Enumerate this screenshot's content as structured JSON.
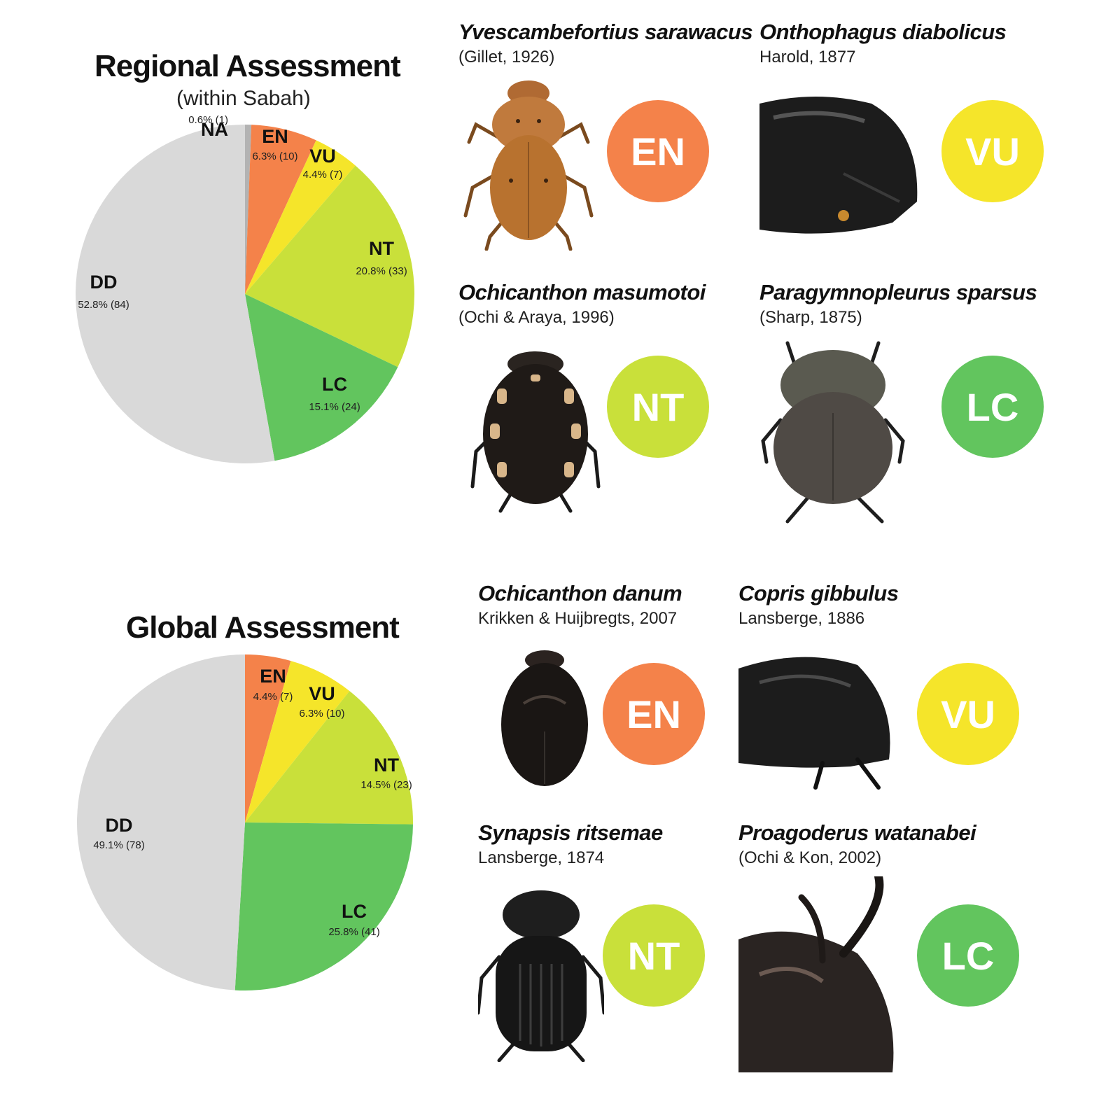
{
  "colors": {
    "NA": "#b3b3b3",
    "EN": "#f4824a",
    "VU": "#f5e52a",
    "NT": "#c9e03a",
    "LC": "#62c55e",
    "DD": "#d9d9d9"
  },
  "chart_data": [
    {
      "type": "pie",
      "title": "Regional Assessment",
      "subtitle": "(within Sabah)",
      "slices": [
        {
          "category": "NA",
          "percent": 0.6,
          "count": 1,
          "value_text": "0.6% (1)"
        },
        {
          "category": "EN",
          "percent": 6.3,
          "count": 10,
          "value_text": "6.3% (10)"
        },
        {
          "category": "VU",
          "percent": 4.4,
          "count": 7,
          "value_text": "4.4% (7)"
        },
        {
          "category": "NT",
          "percent": 20.8,
          "count": 33,
          "value_text": "20.8% (33)"
        },
        {
          "category": "LC",
          "percent": 15.1,
          "count": 24,
          "value_text": "15.1% (24)"
        },
        {
          "category": "DD",
          "percent": 52.8,
          "count": 84,
          "value_text": "52.8% (84)"
        }
      ]
    },
    {
      "type": "pie",
      "title": "Global Assessment",
      "subtitle": "",
      "slices": [
        {
          "category": "EN",
          "percent": 4.4,
          "count": 7,
          "value_text": "4.4% (7)"
        },
        {
          "category": "VU",
          "percent": 6.3,
          "count": 10,
          "value_text": "6.3% (10)"
        },
        {
          "category": "NT",
          "percent": 14.5,
          "count": 23,
          "value_text": "14.5% (23)"
        },
        {
          "category": "LC",
          "percent": 25.8,
          "count": 41,
          "value_text": "25.8% (41)"
        },
        {
          "category": "DD",
          "percent": 49.1,
          "count": 78,
          "value_text": "49.1% (78)"
        }
      ]
    }
  ],
  "species": {
    "regional": [
      {
        "name": "Yvescambefortius sarawacus",
        "author": "(Gillet, 1926)",
        "status": "EN",
        "specimen_icon": "orange-beetle-icon"
      },
      {
        "name": "Onthophagus diabolicus",
        "author": "Harold, 1877",
        "status": "VU",
        "specimen_icon": "black-beetle-icon"
      },
      {
        "name": "Ochicanthon masumotoi",
        "author": "(Ochi & Araya, 1996)",
        "status": "NT",
        "specimen_icon": "spotted-beetle-icon"
      },
      {
        "name": "Paragymnopleurus sparsus",
        "author": "(Sharp, 1875)",
        "status": "LC",
        "specimen_icon": "bronze-beetle-icon"
      }
    ],
    "global": [
      {
        "name": "Ochicanthon danum",
        "author": "Krikken & Huijbregts, 2007",
        "status": "EN",
        "specimen_icon": "black-beetle-icon"
      },
      {
        "name": "Copris gibbulus",
        "author": "Lansberge, 1886",
        "status": "VU",
        "specimen_icon": "black-beetle-icon"
      },
      {
        "name": "Synapsis ritsemae",
        "author": "Lansberge, 1874",
        "status": "NT",
        "specimen_icon": "black-beetle-icon"
      },
      {
        "name": "Proagoderus watanabei",
        "author": "(Ochi & Kon, 2002)",
        "status": "LC",
        "specimen_icon": "horned-beetle-icon"
      }
    ]
  }
}
